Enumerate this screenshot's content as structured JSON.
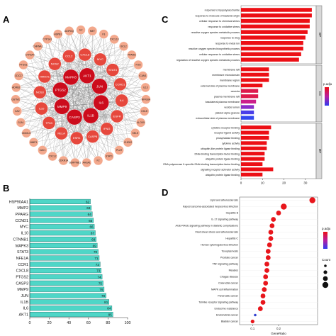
{
  "panels": {
    "a": {
      "letter": "A"
    },
    "b": {
      "letter": "B"
    },
    "c": {
      "letter": "C"
    },
    "d": {
      "letter": "D"
    }
  },
  "chart_data": [
    {
      "panel": "A",
      "type": "network",
      "nodes": [
        {
          "label": "AKT1",
          "ring": "inner",
          "color": "#cc0c1c"
        },
        {
          "label": "JUN",
          "ring": "inner",
          "color": "#cc0c1c"
        },
        {
          "label": "IL6",
          "ring": "inner",
          "color": "#cc0c1c"
        },
        {
          "label": "IL1B",
          "ring": "inner",
          "color": "#cc0c1c"
        },
        {
          "label": "CASP3",
          "ring": "inner",
          "color": "#cc0c1c"
        },
        {
          "label": "MMP9",
          "ring": "inner",
          "color": "#cc0c1c"
        },
        {
          "label": "PTGS2",
          "ring": "inner",
          "color": "#cc0c1c"
        },
        {
          "label": "MAPK8",
          "ring": "inner",
          "color": "#cc0c1c"
        },
        {
          "label": "CXCL8",
          "ring": "mid",
          "color": "#e6483d"
        },
        {
          "label": "MYC",
          "ring": "mid",
          "color": "#e6483d"
        },
        {
          "label": "STAT3",
          "ring": "mid",
          "color": "#e6483d"
        },
        {
          "label": "CCND1",
          "ring": "mid",
          "color": "#e6483d"
        },
        {
          "label": "IL4",
          "ring": "mid",
          "color": "#e6483d"
        },
        {
          "label": "EGFR",
          "ring": "mid",
          "color": "#e6483d"
        },
        {
          "label": "IFNG",
          "ring": "mid",
          "color": "#e6483d"
        },
        {
          "label": "CASP8",
          "ring": "mid",
          "color": "#e6483d"
        },
        {
          "label": "ESR1",
          "ring": "mid",
          "color": "#e6483d"
        },
        {
          "label": "RELA",
          "ring": "mid",
          "color": "#e6483d"
        },
        {
          "label": "TP63",
          "ring": "mid",
          "color": "#e6483d"
        },
        {
          "label": "IL10",
          "ring": "mid",
          "color": "#e6483d"
        },
        {
          "label": "NOS3",
          "ring": "mid",
          "color": "#e6483d"
        },
        {
          "label": "HMOX1",
          "ring": "mid",
          "color": "#e6483d"
        },
        {
          "label": "NOS2",
          "ring": "mid",
          "color": "#e6483d"
        },
        {
          "label": "CCL2",
          "ring": "mid",
          "color": "#e6483d"
        },
        {
          "label": "IL2",
          "ring": "outer",
          "color": "#f3a88c"
        },
        {
          "label": "MET",
          "ring": "outer",
          "color": "#f3a88c"
        },
        {
          "label": "F3",
          "ring": "outer",
          "color": "#f3a88c"
        },
        {
          "label": "CXCL10",
          "ring": "outer",
          "color": "#f3a88c"
        },
        {
          "label": "BCL2",
          "ring": "outer",
          "color": "#f3a88c"
        },
        {
          "label": "PPARG",
          "ring": "outer",
          "color": "#f3a88c"
        },
        {
          "label": "FOS",
          "ring": "outer",
          "color": "#f3a88c"
        },
        {
          "label": "ICAM1",
          "ring": "outer",
          "color": "#f3a88c"
        },
        {
          "label": "IL13",
          "ring": "outer",
          "color": "#f3a88c"
        },
        {
          "label": "NFKBIA",
          "ring": "outer",
          "color": "#f3a88c"
        },
        {
          "label": "CDLE",
          "ring": "outer",
          "color": "#f3a88c"
        },
        {
          "label": "ALOX5",
          "ring": "outer",
          "color": "#f3a88c"
        },
        {
          "label": "SELE",
          "ring": "outer",
          "color": "#f3a88c"
        },
        {
          "label": "CHEK2",
          "ring": "outer",
          "color": "#f3a88c"
        },
        {
          "label": "PLAT",
          "ring": "outer",
          "color": "#f3a88c"
        },
        {
          "label": "STAT1",
          "ring": "outer",
          "color": "#f3a88c"
        },
        {
          "label": "F2",
          "ring": "outer",
          "color": "#f3a88c"
        },
        {
          "label": "AHSA1",
          "ring": "outer",
          "color": "#f3a88c"
        },
        {
          "label": "SERPINE1",
          "ring": "outer",
          "color": "#f3a88c"
        },
        {
          "label": "CDKN1A",
          "ring": "outer",
          "color": "#f3a88c"
        },
        {
          "label": "CXCL2",
          "ring": "outer",
          "color": "#f3a88c"
        },
        {
          "label": "CAV1",
          "ring": "outer",
          "color": "#f3a88c"
        },
        {
          "label": "MMP1",
          "ring": "outer",
          "color": "#f3a88c"
        },
        {
          "label": "CD40LG",
          "ring": "outer",
          "color": "#f3a88c"
        },
        {
          "label": "GJA1",
          "ring": "outer",
          "color": "#f3a88c"
        },
        {
          "label": "CA2",
          "ring": "outer",
          "color": "#f3a88c"
        },
        {
          "label": "GSTM1",
          "ring": "outer",
          "color": "#f3a88c"
        },
        {
          "label": "ADRB2",
          "ring": "outer",
          "color": "#f3a88c"
        },
        {
          "label": "CDC27",
          "ring": "outer",
          "color": "#f3a88c"
        },
        {
          "label": "PTGS1",
          "ring": "outer",
          "color": "#f3a88c"
        },
        {
          "label": "CYP3A4",
          "ring": "outer",
          "color": "#f3a88c"
        },
        {
          "label": "CHRNA1",
          "ring": "outer",
          "color": "#f3a88c"
        },
        {
          "label": "CYP1A1",
          "ring": "outer",
          "color": "#f3a88c"
        },
        {
          "label": "HSPB1",
          "ring": "outer",
          "color": "#f3a88c"
        },
        {
          "label": "ADIPOQ",
          "ring": "outer",
          "color": "#f3a88c"
        }
      ]
    },
    {
      "panel": "B",
      "type": "bar",
      "orientation": "horizontal",
      "categories": [
        "HSP90AA1",
        "MMP2",
        "PPARG",
        "CCND1",
        "MYC",
        "IL10",
        "CTNNB1",
        "MAPK3",
        "STAT3",
        "NFE1A",
        "CCR1",
        "CXCL8",
        "PTGS2",
        "CASP3",
        "MMP9",
        "JUN",
        "IL1B",
        "IL6",
        "AKT1"
      ],
      "values": [
        62,
        63,
        64,
        65,
        66,
        67,
        68,
        69,
        70,
        71,
        72,
        73,
        74,
        75,
        76,
        78,
        81,
        84,
        85
      ],
      "xlim": [
        0,
        100
      ],
      "xticks": [
        0,
        20,
        40,
        60,
        80,
        100
      ],
      "bar_color": "#4fd6c7"
    },
    {
      "panel": "C",
      "type": "bar",
      "orientation": "horizontal",
      "legend_title": "p.adju",
      "groups": [
        {
          "label": "BP",
          "categories": [
            "response to lipopolysaccharide",
            "response to molecule of bacterial origin",
            "cellular response to chemical stress",
            "response to oxidative stress",
            "reactive oxygen species metabolic process",
            "response to drug",
            "response to metal ion",
            "reactive oxygen species biosynthetic process",
            "cellular response to oxidative stress",
            "regulation of reactive oxygen species metabolic process"
          ],
          "values": [
            33,
            33,
            32,
            32,
            31,
            30,
            29,
            29,
            28,
            27
          ],
          "colors": [
            "#ec0f15",
            "#ec0f15",
            "#ec0f15",
            "#ec0f15",
            "#ec0f15",
            "#ec0f15",
            "#ec0f15",
            "#ec0f15",
            "#ec0f15",
            "#ec0f15"
          ]
        },
        {
          "label": "CC",
          "categories": [
            "membrane raft",
            "membrane microdomain",
            "membrane region",
            "external side of plasma membrane",
            "caveola",
            "plasma membrane raft",
            "basolateral plasma membrane",
            "vesicle lumen",
            "platelet alpha granule",
            "extracellular side of plasma membrane"
          ],
          "values": [
            13,
            13,
            13,
            10,
            8,
            8,
            7,
            6,
            6,
            6
          ],
          "colors": [
            "#ec0f15",
            "#ec0f15",
            "#ec0f15",
            "#ec0f15",
            "#dd1a4c",
            "#dd1a4c",
            "#cc1f8a",
            "#8a2ec8",
            "#4a3ee8",
            "#3348ef"
          ]
        },
        {
          "label": "MF",
          "categories": [
            "cytokine receptor binding",
            "receptor ligand activity",
            "phosphatase binding",
            "cytokine activity",
            "ubiquitin-like protein ligase binding",
            "DNA-binding transcription factor binding",
            "ubiquitin protein ligase binding",
            "RNA polymerase II-specific DNA-binding transcription factor binding",
            "signaling receptor activator activity",
            "ubiquitin protein ligase binding"
          ],
          "values": [
            14,
            13,
            13,
            12,
            12,
            11,
            11,
            10,
            15,
            10
          ],
          "colors": [
            "#ec0f15",
            "#ec0f15",
            "#ec0f15",
            "#ec0f15",
            "#ec0f15",
            "#ec0f15",
            "#ec0f15",
            "#ec0f15",
            "#ec0f15",
            "#ec0f15"
          ]
        }
      ],
      "xticks": [
        0,
        10,
        20,
        30
      ]
    },
    {
      "panel": "D",
      "type": "scatter",
      "xlabel": "GeneRatio",
      "legend_title": "p.adju",
      "size_legend_title": "Count",
      "categories": [
        "Lipid and atherosclerosis",
        "Kaposi sarcoma-associated herpesvirus infection",
        "Hepatitis B",
        "IL-17 signaling pathway",
        "AGE-RAGE signaling pathway in diabetic complications",
        "Fluid shear stress and atherosclerosis",
        "Hepatitis C",
        "Human cytomegalovirus infection",
        "Toxoplasmosis",
        "Prostate cancer",
        "TNF signaling pathway",
        "Measles",
        "Chagas disease",
        "Colorectal cancer",
        "MAPK cell inflammation",
        "Pancreatic cancer",
        "Toll-like receptor signaling pathway",
        "Endocrine resistance",
        "Endometrial cancer",
        "Bladder cancer"
      ],
      "x": [
        0.33,
        0.22,
        0.2,
        0.18,
        0.175,
        0.17,
        0.17,
        0.165,
        0.16,
        0.16,
        0.155,
        0.155,
        0.15,
        0.15,
        0.145,
        0.14,
        0.14,
        0.13,
        0.11,
        0.1
      ],
      "colors": [
        "#e8161c",
        "#e8161c",
        "#e8161c",
        "#e8161c",
        "#e8161c",
        "#e8161c",
        "#e8161c",
        "#e8161c",
        "#e8161c",
        "#e8161c",
        "#e8161c",
        "#e8161c",
        "#e8161c",
        "#e8161c",
        "#e8161c",
        "#e8161c",
        "#e8161c",
        "#e8161c",
        "#3040d0",
        "#e8161c"
      ],
      "sizes": [
        4,
        4,
        3,
        3,
        3,
        3,
        3,
        3,
        3,
        3,
        3,
        3,
        3,
        3,
        3,
        3,
        3,
        3,
        1,
        2
      ],
      "xticks": [
        0.1,
        0.2
      ]
    }
  ]
}
